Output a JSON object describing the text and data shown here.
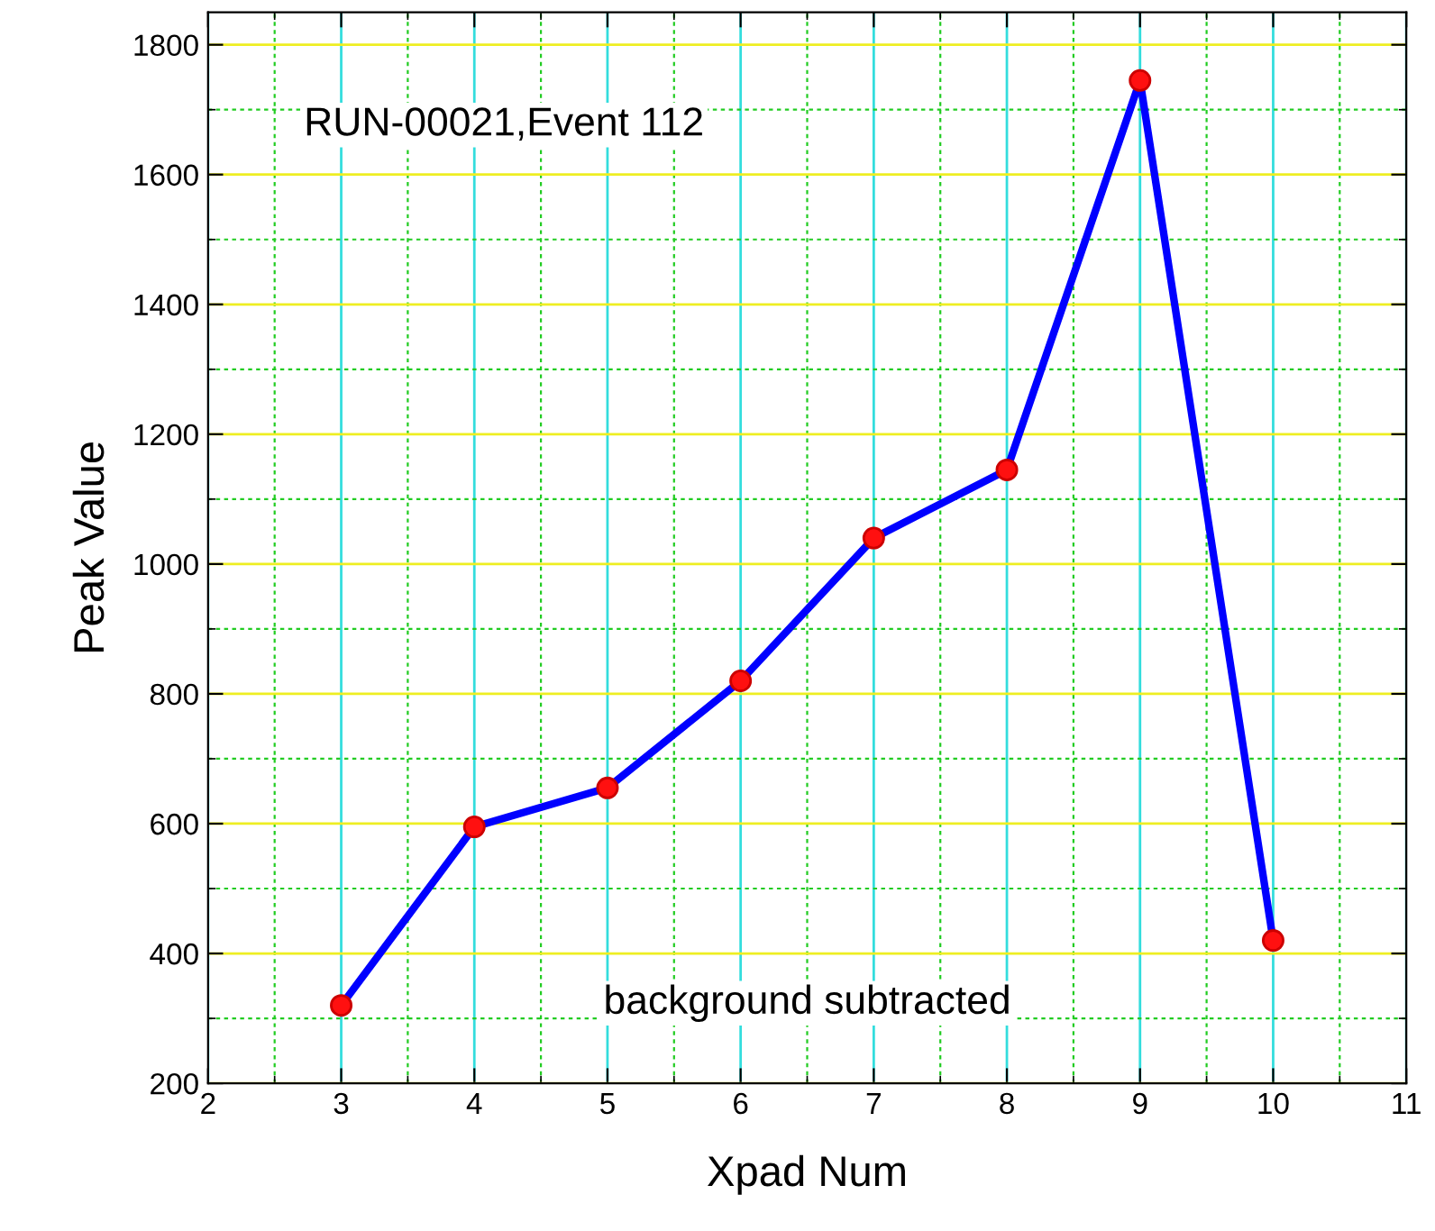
{
  "chart_data": {
    "type": "line",
    "xlabel": "Xpad Num",
    "ylabel": "Peak Value",
    "annotations": [
      "RUN-00021,Event 112",
      "background subtracted"
    ],
    "x": [
      3,
      4,
      5,
      6,
      7,
      8,
      9,
      10
    ],
    "series": [
      {
        "color": "#0000ff",
        "values": [
          320,
          595,
          655,
          820,
          1040,
          1145,
          1745,
          420
        ]
      }
    ],
    "xlim": [
      2,
      11
    ],
    "xticks": [
      2,
      {
        "value": 2.5,
        "label": null
      },
      3,
      {
        "value": 3.5,
        "label": null
      },
      4,
      {
        "value": 4.5,
        "label": null
      },
      5,
      {
        "value": 5.5,
        "label": null
      },
      6,
      {
        "value": 6.5,
        "label": null
      },
      7,
      {
        "value": 7.5,
        "label": null
      },
      8,
      {
        "value": 8.5,
        "label": null
      },
      9,
      {
        "value": 9.5,
        "label": null
      },
      10,
      {
        "value": 10.5,
        "label": null
      },
      11
    ],
    "ylim": [
      200,
      1850
    ],
    "yticks": [
      200,
      {
        "value": 300,
        "label": null
      },
      400,
      {
        "value": 500,
        "label": null
      },
      600,
      {
        "value": 700,
        "label": null
      },
      800,
      {
        "value": 900,
        "label": null
      },
      1000,
      {
        "value": 1100,
        "label": null
      },
      1200,
      {
        "value": 1300,
        "label": null
      },
      1400,
      {
        "value": 1500,
        "label": null
      },
      1600,
      {
        "value": 1700,
        "label": null
      },
      1800
    ],
    "grid": true,
    "marker": "circle",
    "line_style": "solid"
  }
}
